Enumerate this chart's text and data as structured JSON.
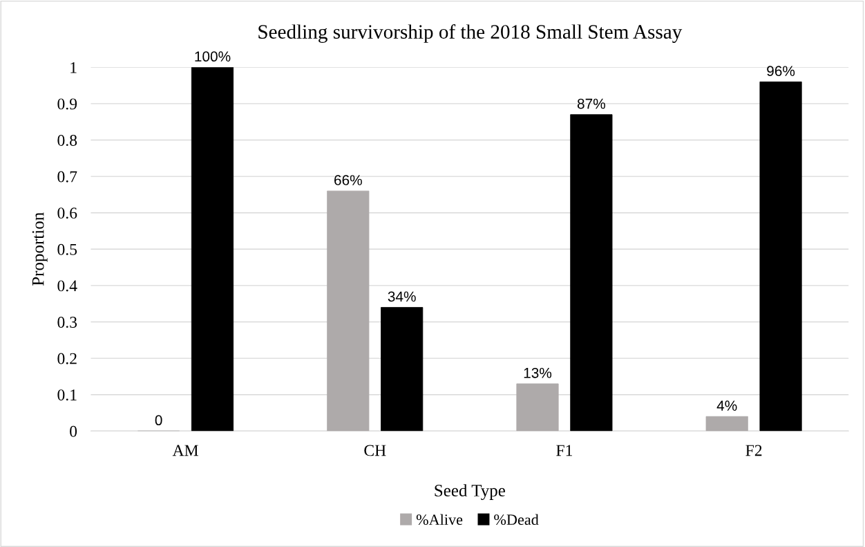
{
  "chart_data": {
    "type": "bar",
    "title": "Seedling survivorship of the 2018 Small Stem Assay",
    "xlabel": "Seed Type",
    "ylabel": "Proportion",
    "categories": [
      "AM",
      "CH",
      "F1",
      "F2"
    ],
    "series": [
      {
        "name": "%Alive",
        "color": "#aeaaaa",
        "values": [
          0,
          0.66,
          0.13,
          0.04
        ],
        "value_labels": [
          "0",
          "66%",
          "13%",
          "4%"
        ]
      },
      {
        "name": "%Dead",
        "color": "#000000",
        "values": [
          1.0,
          0.34,
          0.87,
          0.96
        ],
        "value_labels": [
          "100%",
          "34%",
          "87%",
          "96%"
        ]
      }
    ],
    "ylim": [
      0,
      1
    ],
    "yticks": [
      0,
      0.1,
      0.2,
      0.3,
      0.4,
      0.5,
      0.6,
      0.7,
      0.8,
      0.9,
      1
    ],
    "grid": "y",
    "legend": "bottom"
  }
}
